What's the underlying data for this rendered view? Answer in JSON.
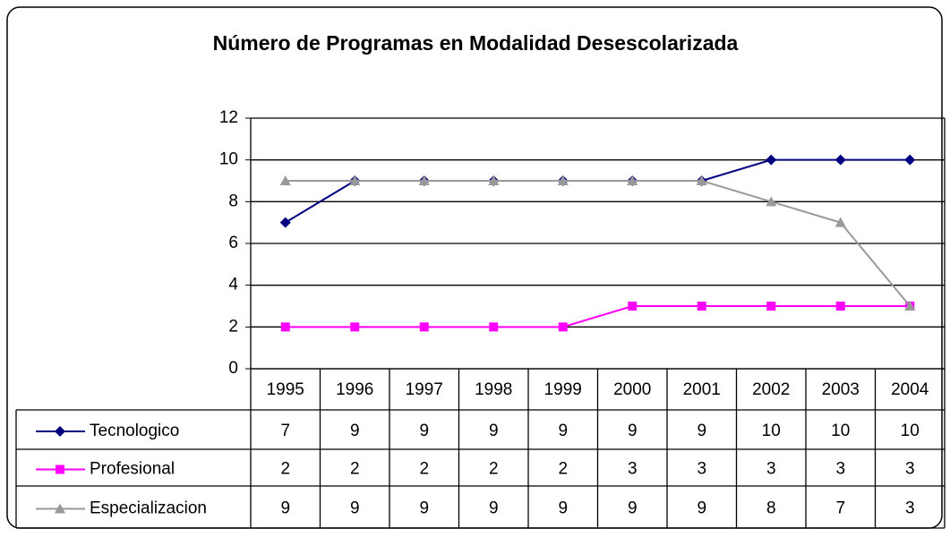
{
  "chart_data": {
    "type": "line",
    "title": "Número de Programas en Modalidad Desescolarizada",
    "categories": [
      "1995",
      "1996",
      "1997",
      "1998",
      "1999",
      "2000",
      "2001",
      "2002",
      "2003",
      "2004"
    ],
    "series": [
      {
        "name": "Tecnologico",
        "color": "#000080",
        "marker": "diamond",
        "values": [
          7,
          9,
          9,
          9,
          9,
          9,
          9,
          10,
          10,
          10
        ]
      },
      {
        "name": "Profesional",
        "color": "#ff00ff",
        "marker": "square",
        "values": [
          2,
          2,
          2,
          2,
          2,
          3,
          3,
          3,
          3,
          3
        ]
      },
      {
        "name": "Especializacion",
        "color": "#999999",
        "marker": "triangle",
        "values": [
          9,
          9,
          9,
          9,
          9,
          9,
          9,
          8,
          7,
          3
        ]
      }
    ],
    "ylim": [
      0,
      12
    ],
    "yticks": [
      0,
      2,
      4,
      6,
      8,
      10,
      12
    ],
    "grid": true
  }
}
